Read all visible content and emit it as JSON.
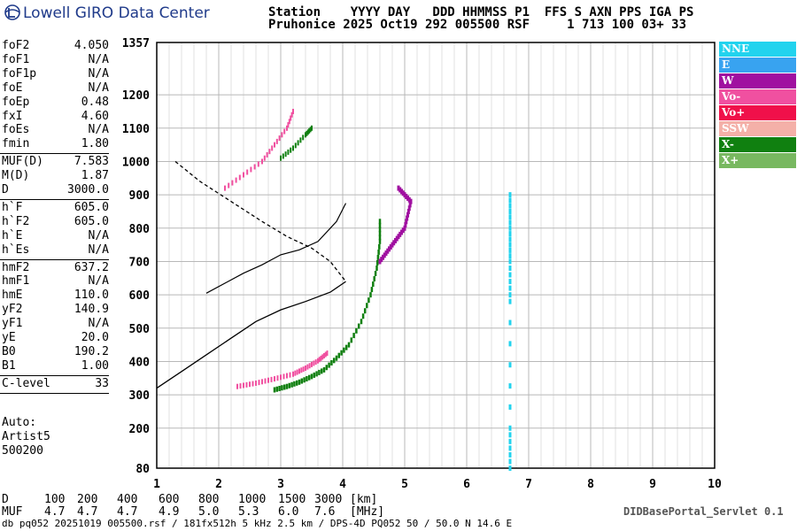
{
  "brand": {
    "title": "Lowell GIRO Data Center",
    "icon": "lowell-logo-icon"
  },
  "header": {
    "line1": "Station    YYYY DAY   DDD HHMMSS P1  FFS S AXN PPS IGA PS",
    "line2": "Pruhonice 2025 Oct19 292 005500 RSF     1 713 100 03+ 33"
  },
  "params": [
    {
      "name": "foF2",
      "value": "4.050"
    },
    {
      "name": "foF1",
      "value": "N/A"
    },
    {
      "name": "foF1p",
      "value": "N/A"
    },
    {
      "name": "foE",
      "value": "N/A"
    },
    {
      "name": "foEp",
      "value": "0.48"
    },
    {
      "name": "fxI",
      "value": "4.60"
    },
    {
      "name": "foEs",
      "value": "N/A"
    },
    {
      "name": "fmin",
      "value": "1.80"
    },
    {
      "name": "MUF(D)",
      "value": "7.583"
    },
    {
      "name": "M(D)",
      "value": "1.87"
    },
    {
      "name": "D",
      "value": "3000.0"
    },
    {
      "name": "h`F",
      "value": "605.0"
    },
    {
      "name": "h`F2",
      "value": "605.0"
    },
    {
      "name": "h`E",
      "value": "N/A"
    },
    {
      "name": "h`Es",
      "value": "N/A"
    },
    {
      "name": "hmF2",
      "value": "637.2"
    },
    {
      "name": "hmF1",
      "value": "N/A"
    },
    {
      "name": "hmE",
      "value": "110.0"
    },
    {
      "name": "yF2",
      "value": "140.9"
    },
    {
      "name": "yF1",
      "value": "N/A"
    },
    {
      "name": "yE",
      "value": "20.0"
    },
    {
      "name": "B0",
      "value": "190.2"
    },
    {
      "name": "B1",
      "value": "1.00"
    },
    {
      "name": "C-level",
      "value": "33"
    }
  ],
  "auto": {
    "label": "Auto:",
    "artist": "Artist5",
    "version": "500200"
  },
  "legend": [
    {
      "label": "NNE",
      "color": "#22d3ee"
    },
    {
      "label": "E",
      "color": "#38a3f0"
    },
    {
      "label": "W",
      "color": "#a010a0"
    },
    {
      "label": "Vo-",
      "color": "#f050a0"
    },
    {
      "label": "Vo+",
      "color": "#f0104a"
    },
    {
      "label": "SSW",
      "color": "#f4b0a8"
    },
    {
      "label": "X-",
      "color": "#108010"
    },
    {
      "label": "X+",
      "color": "#78b860"
    }
  ],
  "muf_table": {
    "d_label": "D",
    "d_values": [
      "100",
      "200",
      "400",
      "600",
      "800",
      "1000",
      "1500",
      "3000"
    ],
    "d_unit": "[km]",
    "muf_label": "MUF",
    "muf_values": [
      "4.7",
      "4.7",
      "4.7",
      "4.9",
      "5.0",
      "5.3",
      "6.0",
      "7.6"
    ],
    "muf_unit": "[MHz]"
  },
  "servlet": "DIDBasePortal_Servlet 0.1",
  "footer": "db pq052 20251019 005500.rsf / 181fx512h 5 kHz 2.5 km / DPS-4D PQ052 50 / 50.0 N 14.6 E",
  "chart_data": {
    "type": "scatter",
    "x": {
      "min": 1,
      "max": 10,
      "ticks": [
        1,
        2,
        3,
        4,
        5,
        6,
        7,
        8,
        9,
        10
      ]
    },
    "y": {
      "min": 80,
      "max": 1357,
      "ticks": [
        80,
        200,
        300,
        400,
        500,
        600,
        700,
        800,
        900,
        1000,
        1100,
        1200,
        1357
      ]
    },
    "grid": true,
    "traces": {
      "ordinary_lower": [
        [
          2.3,
          325
        ],
        [
          2.6,
          335
        ],
        [
          2.9,
          348
        ],
        [
          3.2,
          362
        ],
        [
          3.4,
          380
        ],
        [
          3.6,
          402
        ],
        [
          3.75,
          425
        ]
      ],
      "ordinary_upper": [
        [
          2.1,
          920
        ],
        [
          2.4,
          960
        ],
        [
          2.7,
          1000
        ],
        [
          2.9,
          1050
        ],
        [
          3.1,
          1100
        ],
        [
          3.2,
          1150
        ]
      ],
      "extra_lower": [
        [
          2.9,
          315
        ],
        [
          3.1,
          325
        ],
        [
          3.3,
          338
        ],
        [
          3.5,
          355
        ],
        [
          3.7,
          375
        ],
        [
          3.9,
          410
        ],
        [
          4.1,
          450
        ],
        [
          4.3,
          520
        ],
        [
          4.45,
          600
        ],
        [
          4.55,
          680
        ],
        [
          4.6,
          760
        ],
        [
          4.6,
          820
        ]
      ],
      "extra_upper": [
        [
          3.0,
          1010
        ],
        [
          3.2,
          1040
        ],
        [
          3.4,
          1080
        ],
        [
          3.5,
          1100
        ]
      ],
      "nne_vertical": [
        [
          6.7,
          80
        ],
        [
          6.7,
          200
        ],
        [
          6.7,
          580
        ],
        [
          6.7,
          700
        ],
        [
          6.7,
          800
        ],
        [
          6.7,
          900
        ]
      ],
      "w_cluster": [
        [
          4.6,
          700
        ],
        [
          4.8,
          750
        ],
        [
          5.0,
          800
        ],
        [
          5.1,
          880
        ],
        [
          4.9,
          920
        ]
      ]
    },
    "curves": {
      "profile": [
        [
          1.3,
          1000
        ],
        [
          1.7,
          940
        ],
        [
          2.2,
          880
        ],
        [
          2.7,
          820
        ],
        [
          3.1,
          775
        ],
        [
          3.5,
          740
        ],
        [
          3.8,
          700
        ],
        [
          4.05,
          640
        ],
        [
          3.8,
          608
        ],
        [
          3.4,
          580
        ],
        [
          3.0,
          555
        ],
        [
          2.6,
          520
        ],
        [
          2.2,
          470
        ],
        [
          1.8,
          420
        ],
        [
          1.4,
          370
        ],
        [
          1.0,
          320
        ]
      ],
      "trace_fit": [
        [
          1.8,
          605
        ],
        [
          2.1,
          635
        ],
        [
          2.4,
          665
        ],
        [
          2.7,
          690
        ],
        [
          3.0,
          720
        ],
        [
          3.3,
          735
        ],
        [
          3.6,
          760
        ],
        [
          3.9,
          820
        ],
        [
          4.05,
          875
        ]
      ]
    }
  }
}
